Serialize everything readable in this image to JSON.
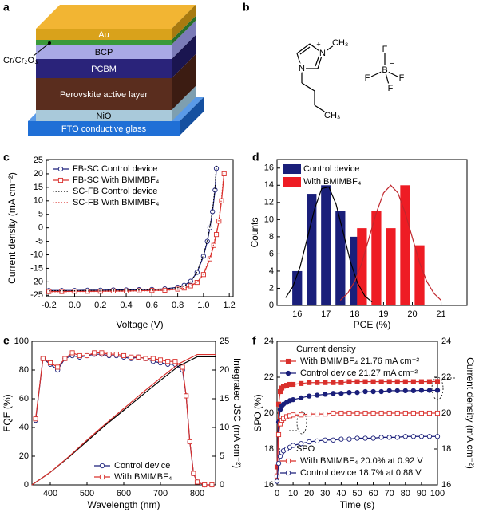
{
  "panel_labels": [
    "a",
    "b",
    "c",
    "d",
    "e",
    "f"
  ],
  "device_stack": {
    "layers": [
      "Au",
      "BCP",
      "PCBM",
      "Perovskite active layer",
      "NiO",
      "FTO conductive glass"
    ],
    "electrode": "Cr/Cr₂O₃"
  },
  "molecule": {
    "cation": {
      "nitrogen_1": "N",
      "charge": "+",
      "methyl": "CH₃",
      "nitrogen_3": "N",
      "chain_end": "CH₃"
    },
    "anion": {
      "boron": "B",
      "charge": "−",
      "fluorines": [
        "F",
        "F",
        "F",
        "F"
      ]
    }
  },
  "chart_data": [
    {
      "type": "line",
      "xlabel": "Voltage (V)",
      "ylabel": "Current density (mA cm⁻²)",
      "xlim": [
        -0.22,
        1.23
      ],
      "xticks": [
        -0.2,
        {
          "value": 0,
          "label": "0.0"
        },
        0.2,
        0.4,
        0.6,
        0.8,
        {
          "value": 1,
          "label": "1.0"
        },
        1.2
      ],
      "ylim": [
        -25.5,
        25.3
      ],
      "yticks": [
        -25,
        -20,
        -15,
        -10,
        -5,
        0,
        5,
        10,
        15,
        20,
        25
      ],
      "legend": "upper left",
      "series": [
        {
          "name": "FB-SC Control device",
          "color": "#1a1f7a",
          "marker": "circle",
          "filled": false,
          "x": [
            -0.2,
            -0.1,
            0,
            0.1,
            0.2,
            0.3,
            0.4,
            0.5,
            0.6,
            0.7,
            0.8,
            0.85,
            0.9,
            0.95,
            1.0,
            1.03,
            1.05,
            1.07,
            1.09,
            1.1
          ],
          "values": [
            -23.2,
            -23.2,
            -23.2,
            -23.1,
            -23.1,
            -23.0,
            -23.0,
            -22.9,
            -22.8,
            -22.6,
            -22.0,
            -21.3,
            -19.8,
            -16.5,
            -10.5,
            -5.0,
            0.0,
            6.0,
            14.0,
            22.0
          ]
        },
        {
          "name": "FB-SC With BMIMBF₄",
          "color": "#d9302c",
          "marker": "square",
          "filled": false,
          "x": [
            -0.2,
            -0.1,
            0,
            0.1,
            0.2,
            0.3,
            0.4,
            0.5,
            0.6,
            0.7,
            0.8,
            0.85,
            0.9,
            0.95,
            1.0,
            1.05,
            1.08,
            1.1,
            1.12,
            1.14,
            1.16
          ],
          "values": [
            -23.6,
            -23.6,
            -23.5,
            -23.5,
            -23.5,
            -23.4,
            -23.4,
            -23.3,
            -23.2,
            -23.1,
            -22.7,
            -22.3,
            -21.5,
            -20.2,
            -17.3,
            -11.5,
            -6.5,
            -2.5,
            2.5,
            10.0,
            20.0
          ]
        },
        {
          "name": "SC-FB Control device",
          "color": "#000000",
          "dash": "dot",
          "x": [
            -0.2,
            -0.1,
            0,
            0.1,
            0.2,
            0.3,
            0.4,
            0.5,
            0.6,
            0.7,
            0.8,
            0.85,
            0.9,
            0.95,
            1.0,
            1.03,
            1.05,
            1.07,
            1.09,
            1.1
          ],
          "values": [
            -23.3,
            -23.3,
            -23.3,
            -23.2,
            -23.2,
            -23.1,
            -23.1,
            -23.0,
            -22.9,
            -22.7,
            -22.2,
            -21.5,
            -20.0,
            -16.3,
            -10.0,
            -4.5,
            0.5,
            6.5,
            15.0,
            23.0
          ]
        },
        {
          "name": "SC-FB With BMIMBF₄",
          "color": "#d9302c",
          "dash": "dot",
          "x": [
            -0.2,
            -0.1,
            0,
            0.1,
            0.2,
            0.3,
            0.4,
            0.5,
            0.6,
            0.7,
            0.8,
            0.85,
            0.9,
            0.95,
            1.0,
            1.05,
            1.08,
            1.1,
            1.12,
            1.14,
            1.16
          ],
          "values": [
            -23.7,
            -23.7,
            -23.6,
            -23.6,
            -23.6,
            -23.5,
            -23.5,
            -23.4,
            -23.3,
            -23.2,
            -22.8,
            -22.4,
            -21.6,
            -20.1,
            -17.0,
            -11.0,
            -6.0,
            -2.0,
            3.0,
            11.0,
            21.0
          ]
        }
      ]
    },
    {
      "type": "bar",
      "xlabel": "PCE (%)",
      "ylabel": "Counts",
      "xlim": [
        15.3,
        21.9
      ],
      "xticks": [
        16,
        17,
        18,
        19,
        20,
        21
      ],
      "ylim": [
        0,
        17
      ],
      "yticks": [
        0,
        2,
        4,
        6,
        8,
        10,
        12,
        14,
        16
      ],
      "legend": "upper left",
      "series": [
        {
          "name": "Control device",
          "color": "#1a1f7a",
          "x": [
            16.0,
            16.5,
            17.0,
            17.5,
            18.0
          ],
          "values": [
            4,
            13,
            14,
            11,
            8
          ],
          "fit": {
            "color": "#000000",
            "x": [
              15.6,
              15.85,
              16.1,
              16.35,
              16.6,
              16.85,
              17.1,
              17.35,
              17.6,
              17.85,
              18.1,
              18.35,
              18.6
            ],
            "values": [
              0.9,
              2.2,
              4.5,
              7.8,
              11.2,
              13.6,
              13.8,
              11.8,
              8.5,
              5.1,
              2.6,
              1.1,
              0.4
            ]
          }
        },
        {
          "name": "With BMIMBF₄",
          "color": "#ee1c24",
          "x": [
            18.25,
            18.75,
            19.25,
            19.75,
            20.25
          ],
          "values": [
            9,
            11,
            9,
            14,
            7
          ],
          "fit": {
            "color": "#c0272d",
            "x": [
              17.5,
              17.75,
              18.0,
              18.25,
              18.5,
              18.75,
              19.0,
              19.25,
              19.5,
              19.75,
              20.0,
              20.25,
              20.5,
              20.75,
              21.0
            ],
            "values": [
              0.6,
              1.4,
              2.8,
              5.0,
              7.9,
              10.8,
              13.1,
              14,
              13.1,
              10.8,
              7.9,
              5.0,
              2.8,
              1.4,
              0.6
            ]
          }
        }
      ]
    },
    {
      "type": "line",
      "xlabel": "Wavelength (nm)",
      "ylabel": "EQE (%)",
      "y2label": "Integrated JSC (mA cm⁻²)",
      "xlim": [
        350,
        850
      ],
      "xticks": [
        400,
        500,
        600,
        700,
        800
      ],
      "ylim": [
        0,
        100
      ],
      "yticks": [
        0,
        20,
        40,
        60,
        80,
        100
      ],
      "y2lim": [
        0,
        25
      ],
      "y2ticks": [
        0,
        5,
        10,
        15,
        20,
        25
      ],
      "legend": "lower right",
      "series": [
        {
          "name": "Control device",
          "color": "#1a1f7a",
          "marker": "circle",
          "filled": false,
          "x": [
            360,
            380,
            400,
            420,
            440,
            460,
            480,
            500,
            520,
            540,
            560,
            580,
            600,
            620,
            640,
            660,
            680,
            700,
            720,
            740,
            760,
            770,
            780,
            790,
            800,
            820,
            840
          ],
          "values": [
            45,
            88,
            84,
            80,
            88,
            90,
            89,
            90,
            91,
            91,
            90,
            90,
            89,
            88,
            89,
            88,
            86,
            85,
            84,
            84,
            80,
            62,
            30,
            8,
            2,
            0,
            0
          ]
        },
        {
          "name": "With BMIMBF₄",
          "color": "#d9302c",
          "marker": "square",
          "filled": false,
          "x": [
            360,
            380,
            400,
            420,
            440,
            460,
            480,
            500,
            520,
            540,
            560,
            580,
            600,
            620,
            640,
            660,
            680,
            700,
            720,
            740,
            760,
            770,
            780,
            790,
            800,
            820,
            840
          ],
          "values": [
            46,
            88,
            85,
            82,
            88,
            92,
            90,
            90,
            92,
            92,
            91,
            91,
            90,
            89,
            89,
            88,
            88,
            87,
            86,
            86,
            82,
            62,
            30,
            8,
            2,
            0,
            0
          ]
        },
        {
          "color": "#000000",
          "axis": "y2",
          "x": [
            350,
            400,
            450,
            500,
            550,
            600,
            650,
            700,
            750,
            800,
            850
          ],
          "values": [
            0,
            2.2,
            4.8,
            7.6,
            10.4,
            13.0,
            15.6,
            18.2,
            20.7,
            22.3,
            22.3
          ]
        },
        {
          "color": "#d9302c",
          "axis": "y2",
          "x": [
            350,
            400,
            450,
            500,
            550,
            600,
            650,
            700,
            750,
            800,
            850
          ],
          "values": [
            0,
            2.2,
            4.9,
            7.8,
            10.6,
            13.3,
            16.0,
            18.6,
            21.1,
            22.7,
            22.7
          ]
        }
      ]
    },
    {
      "type": "line",
      "xlabel": "Time (s)",
      "ylabel": "SPO (%)",
      "y2label": "Current density (mA cm⁻²)",
      "xlim": [
        0,
        100
      ],
      "xticks": [
        0,
        10,
        20,
        30,
        40,
        50,
        60,
        70,
        80,
        90,
        100
      ],
      "ylim": [
        16,
        24
      ],
      "yticks": [
        16,
        18,
        20,
        22,
        24
      ],
      "y2lim": [
        16,
        24
      ],
      "y2ticks": [
        16,
        18,
        20,
        22,
        24
      ],
      "legend": "grouped",
      "legend_titles": [
        "Current density",
        "SPO"
      ],
      "series": [
        {
          "name": "With BMIMBF₄ 21.76 mA cm⁻²",
          "color": "#d9302c",
          "marker": "square",
          "filled": true,
          "axis": "y2",
          "x": [
            0,
            1,
            2,
            3,
            4,
            6,
            8,
            10,
            15,
            20,
            25,
            30,
            35,
            40,
            45,
            50,
            55,
            60,
            65,
            70,
            75,
            80,
            85,
            90,
            95,
            100
          ],
          "values": [
            17.0,
            20.5,
            21.2,
            21.4,
            21.5,
            21.55,
            21.6,
            21.6,
            21.65,
            21.7,
            21.7,
            21.7,
            21.7,
            21.7,
            21.75,
            21.75,
            21.75,
            21.75,
            21.75,
            21.75,
            21.75,
            21.75,
            21.75,
            21.75,
            21.75,
            21.76
          ]
        },
        {
          "name": "Control device 21.27 mA cm⁻²",
          "color": "#1a1f7a",
          "marker": "circle",
          "filled": true,
          "axis": "y2",
          "x": [
            0,
            1,
            2,
            3,
            4,
            6,
            8,
            10,
            15,
            20,
            25,
            30,
            35,
            40,
            45,
            50,
            55,
            60,
            65,
            70,
            75,
            80,
            85,
            90,
            95,
            100
          ],
          "values": [
            16.5,
            19.5,
            20.2,
            20.4,
            20.5,
            20.6,
            20.7,
            20.75,
            20.85,
            20.95,
            21.0,
            21.05,
            21.1,
            21.1,
            21.15,
            21.15,
            21.2,
            21.2,
            21.2,
            21.25,
            21.25,
            21.25,
            21.25,
            21.27,
            21.27,
            21.27
          ]
        },
        {
          "name": "With BMIMBF₄ 20.0% at 0.92 V",
          "color": "#d9302c",
          "marker": "square",
          "filled": false,
          "x": [
            0,
            1,
            2,
            3,
            4,
            6,
            8,
            10,
            15,
            20,
            25,
            30,
            35,
            40,
            45,
            50,
            55,
            60,
            65,
            70,
            75,
            80,
            85,
            90,
            95,
            100
          ],
          "values": [
            16.5,
            18.8,
            19.4,
            19.6,
            19.7,
            19.8,
            19.85,
            19.9,
            19.9,
            19.95,
            19.95,
            19.95,
            20.0,
            20.0,
            20.0,
            20.0,
            20.0,
            20.0,
            20.0,
            20.0,
            20.0,
            20.0,
            20.0,
            20.0,
            20.0,
            20.0
          ]
        },
        {
          "name": "Control device 18.7% at 0.88 V",
          "color": "#1a1f7a",
          "marker": "circle",
          "filled": false,
          "x": [
            0,
            1,
            2,
            3,
            4,
            6,
            8,
            10,
            15,
            20,
            25,
            30,
            35,
            40,
            45,
            50,
            55,
            60,
            65,
            70,
            75,
            80,
            85,
            90,
            95,
            100
          ],
          "values": [
            16.2,
            17.2,
            17.6,
            17.8,
            17.9,
            18.0,
            18.1,
            18.2,
            18.3,
            18.4,
            18.45,
            18.5,
            18.5,
            18.55,
            18.55,
            18.6,
            18.6,
            18.6,
            18.65,
            18.65,
            18.65,
            18.7,
            18.7,
            18.7,
            18.7,
            18.7
          ]
        }
      ]
    }
  ]
}
